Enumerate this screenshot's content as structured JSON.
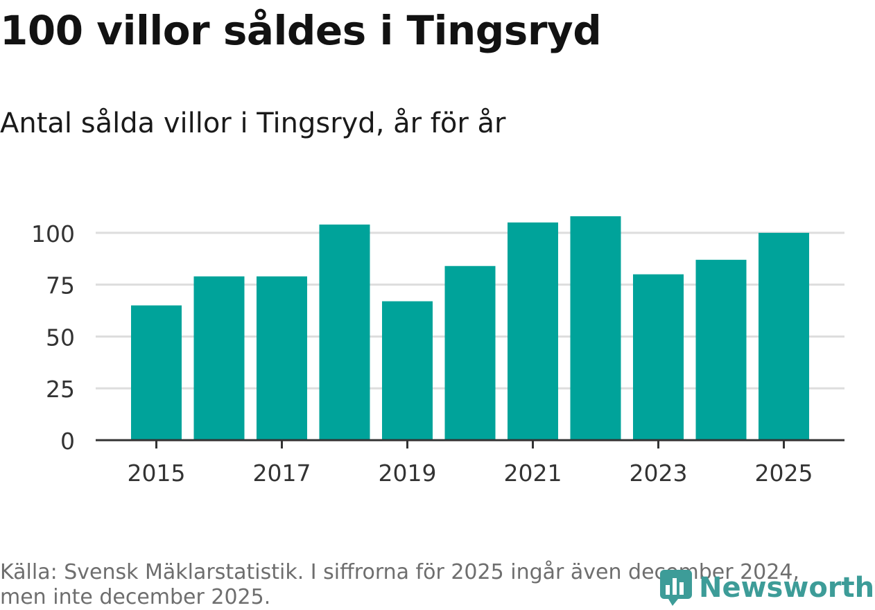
{
  "header": {
    "title": "100 villor såldes i Tingsryd",
    "subtitle": "Antal sålda villor i Tingsryd, år för år"
  },
  "footer": {
    "source": "Källa: Svensk Mäklarstatistik. I siffrorna för 2025 ingår även december 2024, men inte december 2025.",
    "logo_text": "Newsworthy",
    "logo_icon": "newsworthy-logo-icon"
  },
  "colors": {
    "bar": "#00a39a",
    "grid": "#dddddd",
    "axis": "#333333",
    "logo": "#3d9c98"
  },
  "chart_data": {
    "type": "bar",
    "title": "Antal sålda villor i Tingsryd, år för år",
    "xlabel": "",
    "ylabel": "",
    "categories": [
      "2015",
      "2016",
      "2017",
      "2018",
      "2019",
      "2020",
      "2021",
      "2022",
      "2023",
      "2024",
      "2025"
    ],
    "values": [
      65,
      79,
      79,
      104,
      67,
      84,
      105,
      108,
      80,
      87,
      100
    ],
    "ylim": [
      0,
      112
    ],
    "yticks": [
      0,
      25,
      50,
      75,
      100
    ],
    "xticks": [
      "2015",
      "2017",
      "2019",
      "2021",
      "2023",
      "2025"
    ],
    "grid": true
  }
}
